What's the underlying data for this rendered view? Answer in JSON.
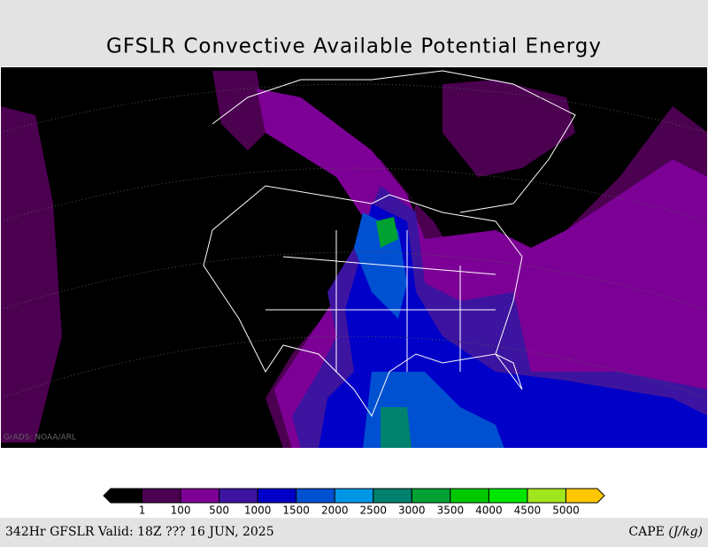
{
  "header": {
    "title": "GFSLR Convective Available Potential Energy"
  },
  "map": {
    "watermark": "GrADS: NOAA/ARL"
  },
  "colorbar": {
    "colors": [
      "#000000",
      "#4b0050",
      "#7d0096",
      "#3c14a0",
      "#0000c8",
      "#0050d2",
      "#0096e6",
      "#00826e",
      "#00a032",
      "#00c800",
      "#00e600",
      "#a0e61e",
      "#ffc800"
    ],
    "labels": [
      "1",
      "100",
      "500",
      "1000",
      "1500",
      "2000",
      "2500",
      "3000",
      "3500",
      "4000",
      "4500",
      "5000"
    ]
  },
  "footer": {
    "left": "342Hr GFSLR Valid: 18Z ??? 16 JUN, 2025",
    "unit_name": "CAPE",
    "unit": "(J/kg)"
  }
}
